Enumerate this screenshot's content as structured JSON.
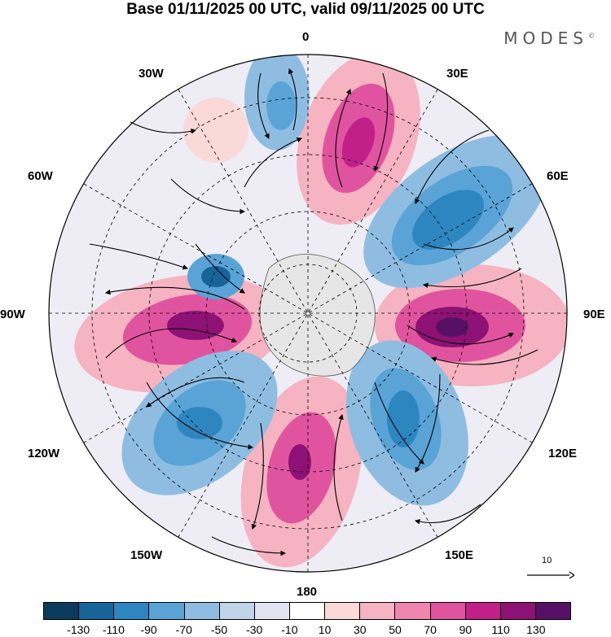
{
  "title": "Base 01/11/2025 00 UTC, valid 09/11/2025 00 UTC",
  "brand": "MODES",
  "brand_mark": "©",
  "map": {
    "projection": "south-polar-stereographic",
    "longitude_labels": [
      "0",
      "30E",
      "60E",
      "90E",
      "120E",
      "150E",
      "180",
      "150W",
      "120W",
      "90W",
      "60W",
      "30W"
    ],
    "reference_vector": {
      "value": "10"
    }
  },
  "legend": {
    "colors": [
      "#0b3b5c",
      "#17649a",
      "#2e86c1",
      "#5aa3d6",
      "#8fbde2",
      "#c2d4ea",
      "#e4e3f1",
      "#ffffff",
      "#fbd9d9",
      "#f6b3c1",
      "#f085b0",
      "#e0549f",
      "#c22089",
      "#8e1275",
      "#561066"
    ],
    "ticks": [
      "-130",
      "-110",
      "-90",
      "-70",
      "-50",
      "-30",
      "-10",
      "10",
      "30",
      "50",
      "70",
      "90",
      "110",
      "130"
    ]
  }
}
